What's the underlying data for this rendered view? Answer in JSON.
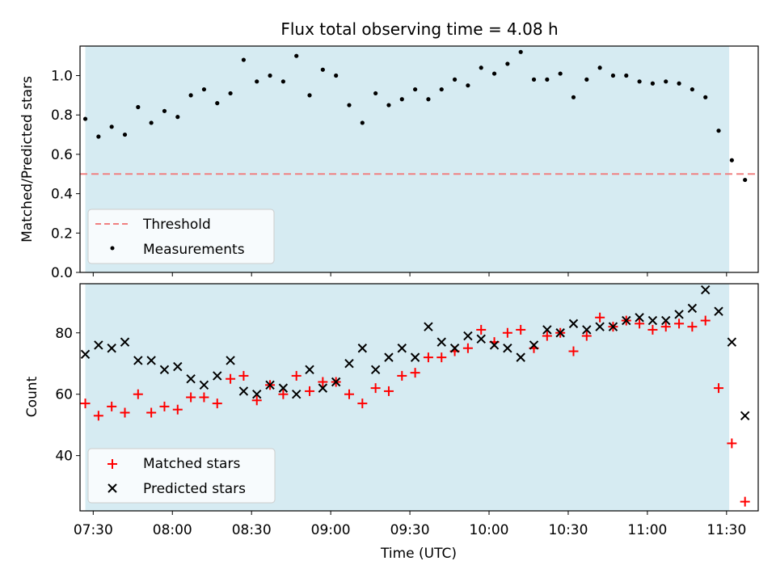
{
  "chart_data": [
    {
      "type": "scatter",
      "title": "Flux total observing time = 4.08 h",
      "xlabel": "",
      "ylabel": "Matched/Predicted stars",
      "xlim": [
        "07:25",
        "11:42"
      ],
      "ylim": [
        0,
        1.15
      ],
      "x_tick_labels": [
        "07:30",
        "08:00",
        "08:30",
        "09:00",
        "09:30",
        "10:00",
        "10:30",
        "11:00",
        "11:30"
      ],
      "y_ticks": [
        0.0,
        0.2,
        0.4,
        0.6,
        0.8,
        1.0
      ],
      "y_tick_labels": [
        "0.0",
        "0.2",
        "0.4",
        "0.6",
        "0.8",
        "1.0"
      ],
      "observing_window": {
        "start": "07:27",
        "end": "11:31",
        "color": "#add8e6"
      },
      "threshold": {
        "name": "Threshold",
        "value": 0.5,
        "color": "#f08080",
        "style": "dashed"
      },
      "series": [
        {
          "name": "Measurements",
          "color": "#000000",
          "marker": "dot",
          "x": [
            "07:27",
            "07:32",
            "07:37",
            "07:42",
            "07:47",
            "07:52",
            "07:57",
            "08:02",
            "08:07",
            "08:12",
            "08:17",
            "08:22",
            "08:27",
            "08:32",
            "08:37",
            "08:42",
            "08:47",
            "08:52",
            "08:57",
            "09:02",
            "09:07",
            "09:12",
            "09:17",
            "09:22",
            "09:27",
            "09:32",
            "09:37",
            "09:42",
            "09:47",
            "09:52",
            "09:57",
            "10:02",
            "10:07",
            "10:12",
            "10:17",
            "10:22",
            "10:27",
            "10:32",
            "10:37",
            "10:42",
            "10:47",
            "10:52",
            "10:57",
            "11:02",
            "11:07",
            "11:12",
            "11:17",
            "11:22",
            "11:27",
            "11:32",
            "11:37"
          ],
          "y": [
            0.78,
            0.69,
            0.74,
            0.7,
            0.84,
            0.76,
            0.82,
            0.79,
            0.9,
            0.93,
            0.86,
            0.91,
            1.08,
            0.97,
            1.0,
            0.97,
            1.1,
            0.9,
            1.03,
            1.0,
            0.85,
            0.76,
            0.91,
            0.85,
            0.88,
            0.93,
            0.88,
            0.93,
            0.98,
            0.95,
            1.04,
            1.01,
            1.06,
            1.12,
            0.98,
            0.98,
            1.01,
            0.89,
            0.98,
            1.04,
            1.0,
            1.0,
            0.97,
            0.96,
            0.97,
            0.96,
            0.93,
            0.89,
            0.72,
            0.57,
            0.47
          ]
        }
      ],
      "legend": {
        "placement": "lower-left",
        "entries": [
          "Threshold",
          "Measurements"
        ]
      },
      "grid": false
    },
    {
      "type": "scatter",
      "title": "",
      "xlabel": "Time (UTC)",
      "ylabel": "Count",
      "xlim": [
        "07:25",
        "11:42"
      ],
      "ylim": [
        22,
        96
      ],
      "x_tick_labels": [
        "07:30",
        "08:00",
        "08:30",
        "09:00",
        "09:30",
        "10:00",
        "10:30",
        "11:00",
        "11:30"
      ],
      "y_ticks": [
        40,
        60,
        80
      ],
      "y_tick_labels": [
        "40",
        "60",
        "80"
      ],
      "observing_window": {
        "start": "07:27",
        "end": "11:31",
        "color": "#add8e6"
      },
      "series": [
        {
          "name": "Matched stars",
          "color": "#ff0000",
          "marker": "plus",
          "x": [
            "07:27",
            "07:32",
            "07:37",
            "07:42",
            "07:47",
            "07:52",
            "07:57",
            "08:02",
            "08:07",
            "08:12",
            "08:17",
            "08:22",
            "08:27",
            "08:32",
            "08:37",
            "08:42",
            "08:47",
            "08:52",
            "08:57",
            "09:02",
            "09:07",
            "09:12",
            "09:17",
            "09:22",
            "09:27",
            "09:32",
            "09:37",
            "09:42",
            "09:47",
            "09:52",
            "09:57",
            "10:02",
            "10:07",
            "10:12",
            "10:17",
            "10:22",
            "10:27",
            "10:32",
            "10:37",
            "10:42",
            "10:47",
            "10:52",
            "10:57",
            "11:02",
            "11:07",
            "11:12",
            "11:17",
            "11:22",
            "11:27",
            "11:32",
            "11:37"
          ],
          "y": [
            57,
            53,
            56,
            54,
            60,
            54,
            56,
            55,
            59,
            59,
            57,
            65,
            66,
            58,
            63,
            60,
            66,
            61,
            64,
            64,
            60,
            57,
            62,
            61,
            66,
            67,
            72,
            72,
            74,
            75,
            81,
            77,
            80,
            81,
            75,
            79,
            80,
            74,
            79,
            85,
            82,
            84,
            83,
            81,
            82,
            83,
            82,
            84,
            62,
            44,
            25
          ]
        },
        {
          "name": "Predicted stars",
          "color": "#000000",
          "marker": "x",
          "x": [
            "07:27",
            "07:32",
            "07:37",
            "07:42",
            "07:47",
            "07:52",
            "07:57",
            "08:02",
            "08:07",
            "08:12",
            "08:17",
            "08:22",
            "08:27",
            "08:32",
            "08:37",
            "08:42",
            "08:47",
            "08:52",
            "08:57",
            "09:02",
            "09:07",
            "09:12",
            "09:17",
            "09:22",
            "09:27",
            "09:32",
            "09:37",
            "09:42",
            "09:47",
            "09:52",
            "09:57",
            "10:02",
            "10:07",
            "10:12",
            "10:17",
            "10:22",
            "10:27",
            "10:32",
            "10:37",
            "10:42",
            "10:47",
            "10:52",
            "10:57",
            "11:02",
            "11:07",
            "11:12",
            "11:17",
            "11:22",
            "11:27",
            "11:32",
            "11:37"
          ],
          "y": [
            73,
            76,
            75,
            77,
            71,
            71,
            68,
            69,
            65,
            63,
            66,
            71,
            61,
            60,
            63,
            62,
            60,
            68,
            62,
            64,
            70,
            75,
            68,
            72,
            75,
            72,
            82,
            77,
            75,
            79,
            78,
            76,
            75,
            72,
            76,
            81,
            80,
            83,
            81,
            82,
            82,
            84,
            85,
            84,
            84,
            86,
            88,
            94,
            87,
            77,
            53
          ]
        }
      ],
      "legend": {
        "placement": "lower-left",
        "entries": [
          "Matched stars",
          "Predicted stars"
        ]
      },
      "grid": false
    }
  ]
}
